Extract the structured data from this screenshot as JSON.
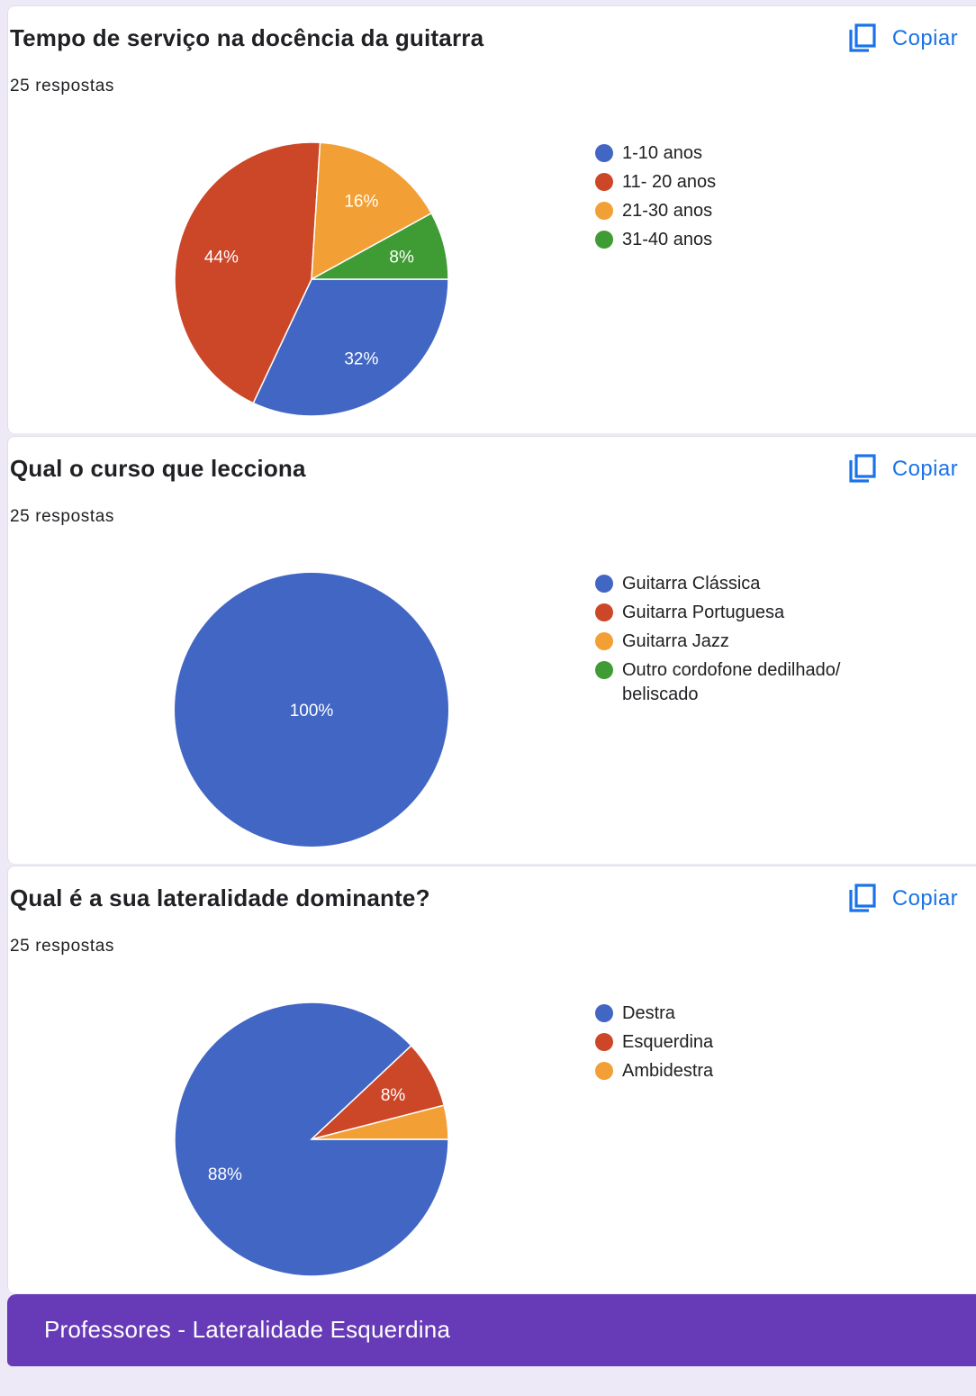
{
  "copy_label": "Copiar",
  "colors": {
    "blue": "#4166c4",
    "red": "#cc4628",
    "orange": "#f2a035",
    "green": "#3f9b34",
    "link": "#1a73e8",
    "footer": "#673ab7"
  },
  "cards": [
    {
      "title": "Tempo de serviço na docência da guitarra",
      "count": "25 respostas",
      "legend": [
        {
          "label": "1-10 anos",
          "color": "#4166c4"
        },
        {
          "label": "11- 20 anos",
          "color": "#cc4628"
        },
        {
          "label": "21-30 anos",
          "color": "#f2a035"
        },
        {
          "label": "31-40 anos",
          "color": "#3f9b34"
        }
      ]
    },
    {
      "title": "Qual o curso que lecciona",
      "count": "25 respostas",
      "legend": [
        {
          "label": "Guitarra Clássica",
          "color": "#4166c4"
        },
        {
          "label": "Guitarra Portuguesa",
          "color": "#cc4628"
        },
        {
          "label": "Guitarra Jazz",
          "color": "#f2a035"
        },
        {
          "label": "Outro cordofone dedilhado/ beliscado",
          "color": "#3f9b34"
        }
      ]
    },
    {
      "title": "Qual é a sua lateralidade dominante?",
      "count": "25 respostas",
      "legend": [
        {
          "label": "Destra",
          "color": "#4166c4"
        },
        {
          "label": "Esquerdina",
          "color": "#cc4628"
        },
        {
          "label": "Ambidestra",
          "color": "#f2a035"
        }
      ]
    }
  ],
  "chart_data": [
    {
      "type": "pie",
      "categories": [
        "1-10 anos",
        "11- 20 anos",
        "21-30 anos",
        "31-40 anos"
      ],
      "values": [
        32,
        44,
        16,
        8
      ],
      "labels": [
        "32%",
        "44%",
        "16%",
        "8%"
      ],
      "colors": [
        "#4166c4",
        "#cc4628",
        "#f2a035",
        "#3f9b34"
      ],
      "legend": "right"
    },
    {
      "type": "pie",
      "categories": [
        "Guitarra Clássica",
        "Guitarra Portuguesa",
        "Guitarra Jazz",
        "Outro cordofone dedilhado/ beliscado"
      ],
      "values": [
        100,
        0,
        0,
        0
      ],
      "labels": [
        "100%",
        "",
        "",
        ""
      ],
      "colors": [
        "#4166c4",
        "#cc4628",
        "#f2a035",
        "#3f9b34"
      ],
      "legend": "right"
    },
    {
      "type": "pie",
      "categories": [
        "Destra",
        "Esquerdina",
        "Ambidestra"
      ],
      "values": [
        88,
        8,
        4
      ],
      "labels": [
        "88%",
        "8%",
        ""
      ],
      "colors": [
        "#4166c4",
        "#cc4628",
        "#f2a035"
      ],
      "legend": "right"
    }
  ],
  "footer": {
    "title": "Professores - Lateralidade Esquerdina"
  }
}
